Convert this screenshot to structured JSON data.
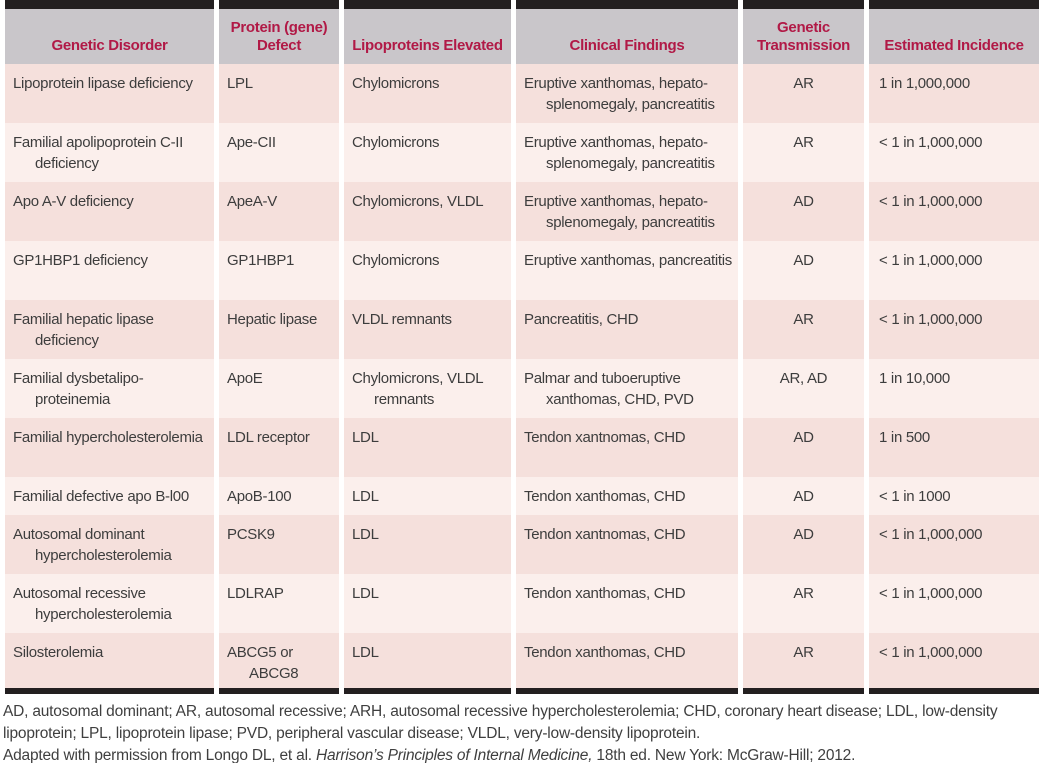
{
  "table": {
    "columns": [
      "Genetic Disorder",
      "Protein (gene) Defect",
      "Lipoproteins Elevated",
      "Clinical Findings",
      "Genetic Transmission",
      "Estimated Incidence"
    ],
    "rows": [
      {
        "disorder": "Lipoprotein lipase deficiency",
        "protein": "LPL",
        "lipoproteins": "Chylomicrons",
        "findings": "Eruptive xanthomas, hepato-splenomegaly, pancreatitis",
        "transmission": "AR",
        "incidence": "1 in 1,000,000"
      },
      {
        "disorder": "Familial apolipoprotein C-II deficiency",
        "protein": "Ape-CII",
        "lipoproteins": "Chylomicrons",
        "findings": "Eruptive xanthomas, hepato-splenomegaly, pancreatitis",
        "transmission": "AR",
        "incidence": "< 1 in 1,000,000"
      },
      {
        "disorder": "Apo A-V deficiency",
        "protein": "ApeA-V",
        "lipoproteins": "Chylomicrons, VLDL",
        "findings": "Eruptive xanthomas, hepato-splenomegaly, pancreatitis",
        "transmission": "AD",
        "incidence": "< 1 in 1,000,000"
      },
      {
        "disorder": "GP1HBP1 deficiency",
        "protein": "GP1HBP1",
        "lipoproteins": "Chylomicrons",
        "findings": "Eruptive xanthomas, pancreatitis",
        "transmission": "AD",
        "incidence": "< 1 in 1,000,000"
      },
      {
        "disorder": "Familial hepatic lipase deficiency",
        "protein": "Hepatic lipase",
        "lipoproteins": "VLDL remnants",
        "findings": "Pancreatitis, CHD",
        "transmission": "AR",
        "incidence": "< 1 in 1,000,000"
      },
      {
        "disorder": "Familial dysbetalipo-proteinemia",
        "protein": "ApoE",
        "lipoproteins": "Chylomicrons, VLDL remnants",
        "findings": "Palmar and tuboeruptive xanthomas, CHD, PVD",
        "transmission": "AR, AD",
        "incidence": "1 in 10,000"
      },
      {
        "disorder": "Familial hypercholesterolemia",
        "protein": "LDL receptor",
        "lipoproteins": "LDL",
        "findings": "Tendon xantnomas, CHD",
        "transmission": "AD",
        "incidence": "1 in 500"
      },
      {
        "disorder": "Familial defective apo B-l00",
        "protein": "ApoB-100",
        "lipoproteins": "LDL",
        "findings": "Tendon xanthomas, CHD",
        "transmission": "AD",
        "incidence": "< 1 in 1000"
      },
      {
        "disorder": "Autosomal dominant hypercholesterolemia",
        "protein": "PCSK9",
        "lipoproteins": "LDL",
        "findings": "Tendon xantnomas, CHD",
        "transmission": "AD",
        "incidence": "< 1 in 1,000,000"
      },
      {
        "disorder": "Autosomal recessive hypercholesterolemia",
        "protein": "LDLRAP",
        "lipoproteins": "LDL",
        "findings": "Tendon xanthomas, CHD",
        "transmission": "AR",
        "incidence": "< 1 in 1,000,000"
      },
      {
        "disorder": "Silosterolemia",
        "protein": "ABCG5 or ABCG8",
        "lipoproteins": "LDL",
        "findings": "Tendon xanthomas, CHD",
        "transmission": "AR",
        "incidence": "< 1 in 1,000,000"
      }
    ]
  },
  "footer": {
    "abbreviations": "AD, autosomal dominant; AR, autosomal recessive; ARH, autosomal recessive hypercholesterolemia; CHD, coronary heart disease; LDL, low-density lipoprotein; LPL, lipoprotein lipase; PVD, peripheral vascular disease; VLDL, very-low-density lipoprotein.",
    "citation_prefix": "Adapted with permission from Longo DL, et al. ",
    "citation_title": "Harrison’s Principles of Internal Medicine,",
    "citation_suffix": " 18th ed. New York: McGraw-Hill; 2012."
  },
  "colors": {
    "bar_black": "#231f20",
    "header_bg": "#c9c6ca",
    "header_text": "#b11946",
    "row_odd": "#f5e0dc",
    "row_even": "#fbefec",
    "body_text": "#3d3d3d"
  }
}
